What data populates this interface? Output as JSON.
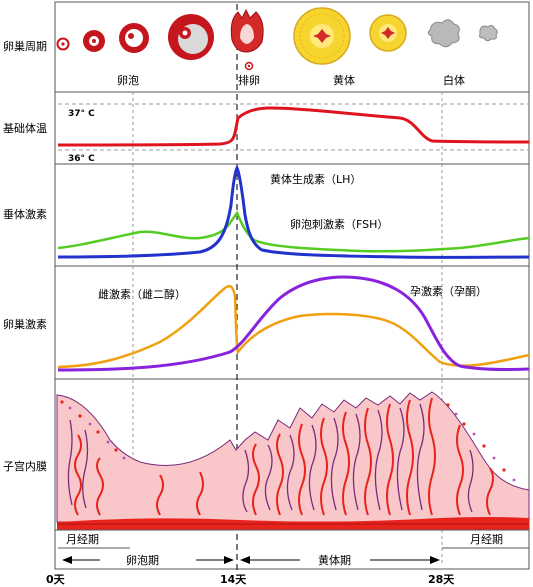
{
  "rows": {
    "ovarian_cycle": "卵巢周期",
    "bbt": "基础体温",
    "pituitary": "垂体激素",
    "ovarian_hormones": "卵巢激素",
    "endometrium": "子宫内膜"
  },
  "stages": {
    "follicle": "卵泡",
    "ovulation": "排卵",
    "corpus_luteum": "黄体",
    "corpus_albicans": "白体"
  },
  "temperature": {
    "high": "37° C",
    "low": "36° C"
  },
  "legend": {
    "lh": "黄体生成素（LH）",
    "fsh": "卵泡刺激素（FSH）",
    "estrogen": "雌激素（雌二醇）",
    "progesterone": "孕激素（孕酮）"
  },
  "phases": {
    "menses_left": "月经期",
    "menses_right": "月经期",
    "follicular": "卵泡期",
    "luteal": "黄体期"
  },
  "days": {
    "d0": "0天",
    "d14": "14天",
    "d28": "28天"
  },
  "colors": {
    "bbt": "#e0141e",
    "lh": "#2233cc",
    "fsh": "#55cc22",
    "estrogen": "#f0a010",
    "progesterone": "#8822dd",
    "endometrium_fill": "#f9c7c9",
    "gland_outline": "#7a2a7a",
    "vessel": "#e8231b"
  }
}
